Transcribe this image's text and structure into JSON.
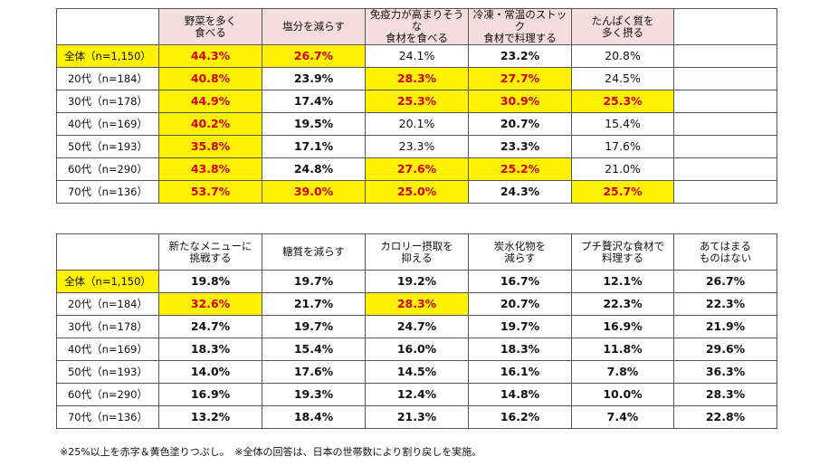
{
  "table1": {
    "headers": [
      "野菜を多く\n食べる",
      "塩分を減らす",
      "免疫力が高まりそうな\n食材を食べる",
      "冷凍・常温のストック\n食材で料理する",
      "たんぱく質を\n多く摂る"
    ],
    "rows": [
      {
        "label": "全体（n=1,150）",
        "values": [
          "44.3%",
          "26.7%",
          "24.1%",
          "23.2%",
          "20.8%"
        ]
      },
      {
        "label": "20代（n=184）",
        "values": [
          "40.8%",
          "23.9%",
          "28.3%",
          "27.7%",
          "24.5%"
        ]
      },
      {
        "label": "30代（n=178）",
        "values": [
          "44.9%",
          "17.4%",
          "25.3%",
          "30.9%",
          "25.3%"
        ]
      },
      {
        "label": "40代（n=169）",
        "values": [
          "40.2%",
          "19.5%",
          "20.1%",
          "20.7%",
          "15.4%"
        ]
      },
      {
        "label": "50代（n=193）",
        "values": [
          "35.8%",
          "17.1%",
          "23.3%",
          "23.3%",
          "17.6%"
        ]
      },
      {
        "label": "60代（n=290）",
        "values": [
          "43.8%",
          "24.8%",
          "27.6%",
          "25.2%",
          "21.0%"
        ]
      },
      {
        "label": "70代（n=136）",
        "values": [
          "53.7%",
          "39.0%",
          "25.0%",
          "24.3%",
          "25.7%"
        ]
      }
    ]
  },
  "table2": {
    "headers": [
      "新たなメニューに\n挑戦する",
      "糖質を減らす",
      "カロリー摂取を\n抑える",
      "炭水化物を\n減らす",
      "プチ贅沢な食材で\n料理する",
      "あてはまる\nものはない"
    ],
    "rows": [
      {
        "label": "全体（n=1,150）",
        "values": [
          "19.8%",
          "19.7%",
          "19.2%",
          "16.7%",
          "12.1%",
          "26.7%"
        ]
      },
      {
        "label": "20代（n=184）",
        "values": [
          "32.6%",
          "21.7%",
          "28.3%",
          "20.7%",
          "22.3%",
          "22.3%"
        ]
      },
      {
        "label": "30代（n=178）",
        "values": [
          "24.7%",
          "19.7%",
          "24.7%",
          "19.7%",
          "16.9%",
          "21.9%"
        ]
      },
      {
        "label": "40代（n=169）",
        "values": [
          "18.3%",
          "15.4%",
          "16.0%",
          "18.3%",
          "11.8%",
          "29.6%"
        ]
      },
      {
        "label": "50代（n=193）",
        "values": [
          "14.0%",
          "17.6%",
          "14.5%",
          "16.1%",
          "7.8%",
          "36.3%"
        ]
      },
      {
        "label": "60代（n=290）",
        "values": [
          "16.9%",
          "19.3%",
          "12.4%",
          "14.8%",
          "10.0%",
          "28.3%"
        ]
      },
      {
        "label": "70代（n=136）",
        "values": [
          "13.2%",
          "18.4%",
          "21.3%",
          "16.2%",
          "7.4%",
          "22.8%"
        ]
      }
    ]
  },
  "footnote": "※25%以上を赤字＆黄色塗りつぶし。　※全体の回答は、日本の世帯数により割り戻しを実施。",
  "colors": {
    "highlight": "#fff200",
    "highlight_text": "#d4001f",
    "header_bg_table1": "#f5dcde"
  }
}
